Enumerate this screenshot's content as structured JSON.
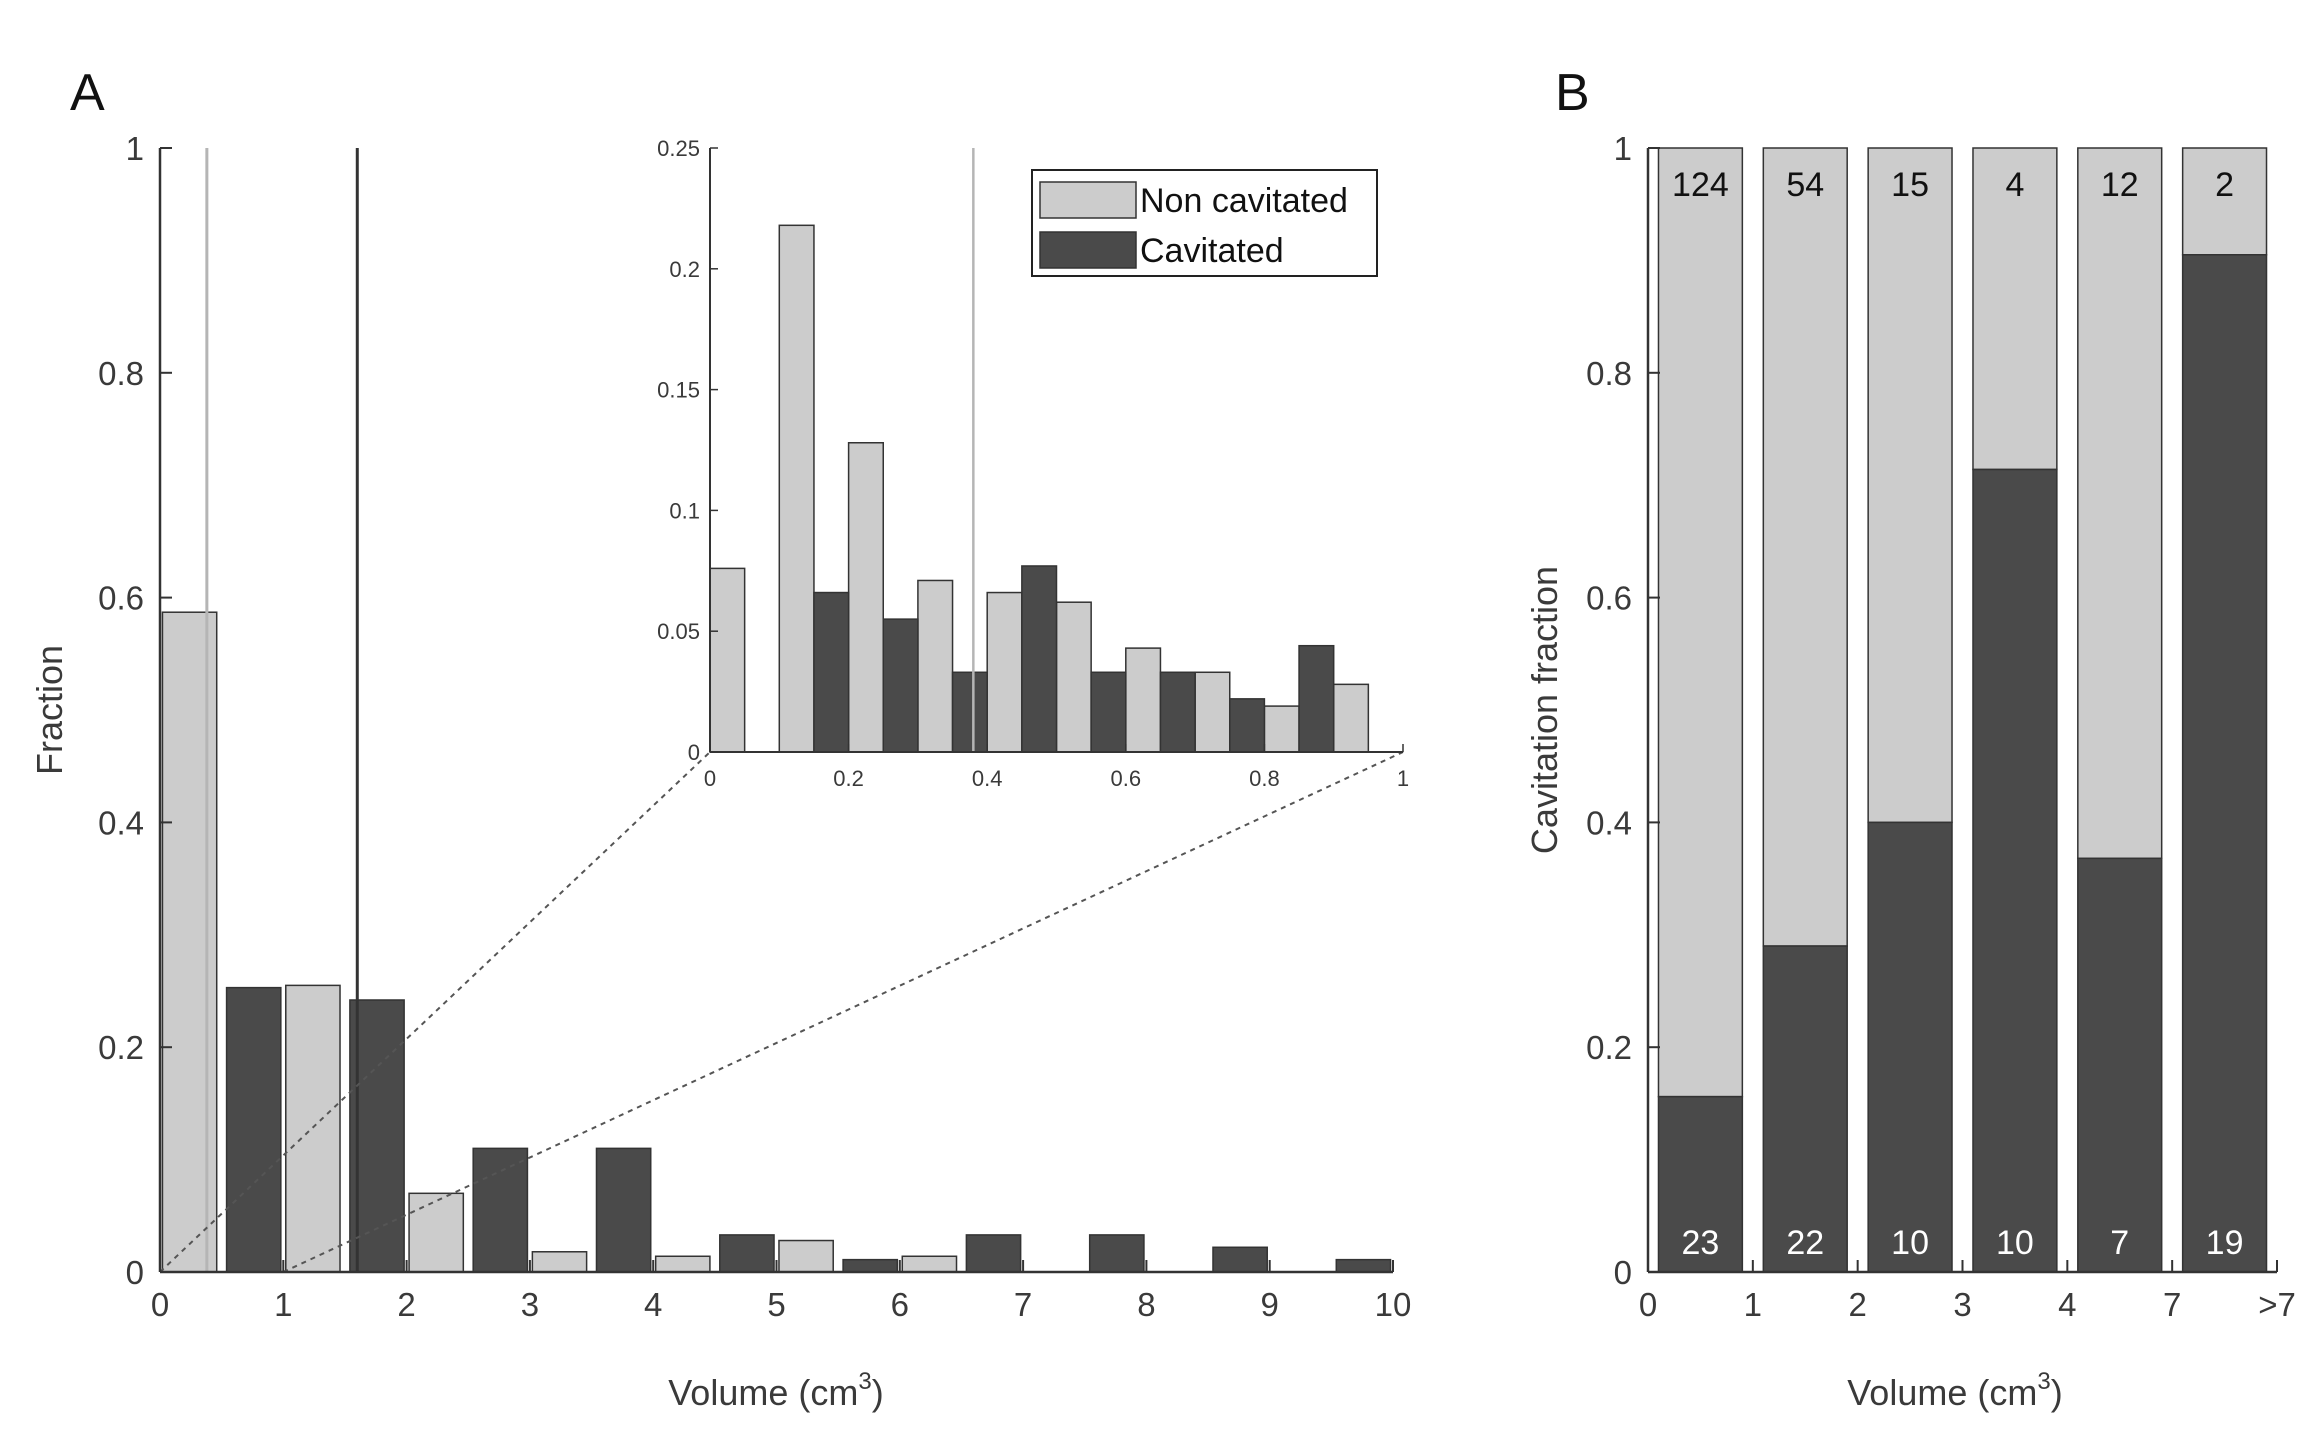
{
  "colors": {
    "non_cavitated": "#cccccc",
    "cavitated": "#4a4a4a",
    "axis": "#333333",
    "median_light": "#b5b5b5",
    "median_dark": "#333333"
  },
  "labels": {
    "panel_a": "A",
    "panel_b": "B",
    "a_xlabel_prefix": "Volume (cm",
    "a_xlabel_sup": "3",
    "a_xlabel_suffix": ")",
    "a_ylabel": "Fraction",
    "b_xlabel_prefix": "Volume (cm",
    "b_xlabel_sup": "3",
    "b_xlabel_suffix": ")",
    "b_ylabel": "Cavitation fraction",
    "legend_non_cavitated": "Non cavitated",
    "legend_cavitated": "Cavitated"
  },
  "chart_data": [
    {
      "id": "panel-A-main",
      "type": "bar",
      "title": "",
      "xlabel": "Volume (cm3)",
      "ylabel": "Fraction",
      "xlim": [
        0,
        10
      ],
      "ylim": [
        0,
        1
      ],
      "xticks": [
        0,
        1,
        2,
        3,
        4,
        5,
        6,
        7,
        8,
        9,
        10
      ],
      "xtick_labels": [
        "0",
        "1",
        "2",
        "3",
        "4",
        "5",
        "6",
        "7",
        "8",
        "9",
        "10"
      ],
      "yticks": [
        0,
        0.2,
        0.4,
        0.6,
        0.8,
        1
      ],
      "ytick_labels": [
        "0",
        "0.2",
        "0.4",
        "0.6",
        "0.8",
        "1"
      ],
      "bin_edges": [
        0,
        1,
        2,
        3,
        4,
        5,
        6,
        7,
        8,
        9,
        10
      ],
      "series": [
        {
          "name": "Non cavitated",
          "values": [
            0.587,
            0.255,
            0.07,
            0.018,
            0.014,
            0.028,
            0.014,
            0,
            0,
            0
          ]
        },
        {
          "name": "Cavitated",
          "values": [
            0.253,
            0.242,
            0.11,
            0.11,
            0.033,
            0.011,
            0.033,
            0.033,
            0.022,
            0.011
          ]
        }
      ],
      "median_lines": [
        {
          "series": "Non cavitated",
          "x": 0.38
        },
        {
          "series": "Cavitated",
          "x": 1.6
        }
      ],
      "zoom_region": [
        0,
        1
      ]
    },
    {
      "id": "panel-A-inset",
      "type": "bar",
      "title": "",
      "xlim": [
        0,
        1
      ],
      "ylim": [
        0,
        0.25
      ],
      "xticks": [
        0,
        0.2,
        0.4,
        0.6,
        0.8,
        1
      ],
      "xtick_labels": [
        "0",
        "0.2",
        "0.4",
        "0.6",
        "0.8",
        "1"
      ],
      "yticks": [
        0,
        0.05,
        0.1,
        0.15,
        0.2,
        0.25
      ],
      "ytick_labels": [
        "0",
        "0.05",
        "0.1",
        "0.15",
        "0.2",
        "0.25"
      ],
      "bin_edges": [
        0,
        0.1,
        0.2,
        0.3,
        0.4,
        0.5,
        0.6,
        0.7,
        0.8,
        0.9,
        1.0
      ],
      "series": [
        {
          "name": "Non cavitated",
          "values": [
            0.076,
            0.218,
            0.128,
            0.071,
            0.066,
            0.062,
            0.043,
            0.033,
            0.019,
            0.028
          ]
        },
        {
          "name": "Cavitated",
          "values": [
            0,
            0.066,
            0.055,
            0.033,
            0.077,
            0.033,
            0.033,
            0.022,
            0.044,
            0
          ]
        }
      ],
      "median_lines": [
        {
          "series": "Non cavitated",
          "x": 0.38
        }
      ],
      "legend": {
        "position": "top-right",
        "entries": [
          "Non cavitated",
          "Cavitated"
        ]
      }
    },
    {
      "id": "panel-B",
      "type": "bar",
      "stacked": true,
      "title": "",
      "xlabel": "Volume (cm3)",
      "ylabel": "Cavitation fraction",
      "ylim": [
        0,
        1
      ],
      "yticks": [
        0,
        0.2,
        0.4,
        0.6,
        0.8,
        1
      ],
      "ytick_labels": [
        "0",
        "0.2",
        "0.4",
        "0.6",
        "0.8",
        "1"
      ],
      "xtick_labels": [
        "0",
        "1",
        "2",
        "3",
        "4",
        "7",
        ">7"
      ],
      "categories": [
        "0-1",
        "1-2",
        "2-3",
        "3-4",
        "4-7",
        ">7"
      ],
      "series": [
        {
          "name": "Cavitated",
          "values": [
            0.156,
            0.29,
            0.4,
            0.714,
            0.368,
            0.905
          ]
        },
        {
          "name": "Non cavitated",
          "values": [
            0.844,
            0.71,
            0.6,
            0.286,
            0.632,
            0.095
          ]
        }
      ],
      "counts_non_cavitated": [
        "124",
        "54",
        "15",
        "4",
        "12",
        "2"
      ],
      "counts_cavitated": [
        "23",
        "22",
        "10",
        "10",
        "7",
        "19"
      ]
    }
  ]
}
